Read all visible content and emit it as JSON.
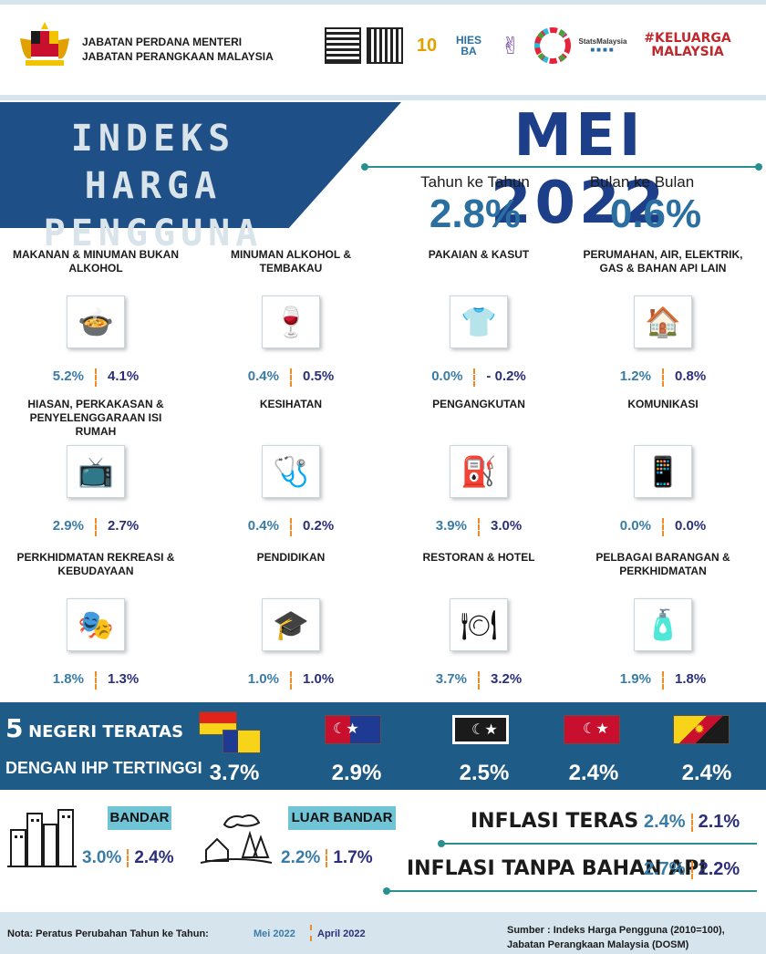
{
  "header": {
    "agency_line1": "JABATAN PERDANA MENTERI",
    "agency_line2": "JABATAN PERANGKAAN MALAYSIA",
    "logo_hies": "HIES BA",
    "logo_stats": "StatsMalaysia",
    "logo_keluarga": "#KELUARGA MALAYSIA"
  },
  "title": {
    "line1": "INDEKS HARGA",
    "line2": "PENGGUNA",
    "month": "MEI 2022",
    "yoy_label": "Tahun ke Tahun",
    "yoy_value": "2.8%",
    "mom_label": "Bulan ke Bulan",
    "mom_value": "0.6%"
  },
  "categories": [
    {
      "label": "MAKANAN & MINUMAN BUKAN ALKOHOL",
      "icon": "food-icon",
      "may": "5.2%",
      "apr": "4.1%"
    },
    {
      "label": "MINUMAN ALKOHOL & TEMBAKAU",
      "icon": "wine-bottle-icon",
      "may": "0.4%",
      "apr": "0.5%"
    },
    {
      "label": "PAKAIAN & KASUT",
      "icon": "clothing-icon",
      "may": "0.0%",
      "apr": "- 0.2%"
    },
    {
      "label": "PERUMAHAN, AIR, ELEKTRIK, GAS & BAHAN API LAIN",
      "icon": "house-icon",
      "may": "1.2%",
      "apr": "0.8%"
    },
    {
      "label": "HIASAN, PERKAKASAN & PENYELENGGARAAN ISI RUMAH",
      "icon": "furniture-icon",
      "may": "2.9%",
      "apr": "2.7%"
    },
    {
      "label": "KESIHATAN",
      "icon": "stethoscope-icon",
      "may": "0.4%",
      "apr": "0.2%"
    },
    {
      "label": "PENGANGKUTAN",
      "icon": "transport-icon",
      "may": "3.9%",
      "apr": "3.0%"
    },
    {
      "label": "KOMUNIKASI",
      "icon": "phone-icon",
      "may": "0.0%",
      "apr": "0.0%"
    },
    {
      "label": "PERKHIDMATAN REKREASI & KEBUDAYAAN",
      "icon": "theatre-masks-icon",
      "may": "1.8%",
      "apr": "1.3%"
    },
    {
      "label": "PENDIDIKAN",
      "icon": "graduation-cap-icon",
      "may": "1.0%",
      "apr": "1.0%"
    },
    {
      "label": "RESTORAN & HOTEL",
      "icon": "restaurant-icon",
      "may": "3.7%",
      "apr": "3.2%"
    },
    {
      "label": "PELBAGAI BARANGAN & PERKHIDMATAN",
      "icon": "misc-goods-icon",
      "may": "1.9%",
      "apr": "1.8%"
    }
  ],
  "states": {
    "title_num": "5",
    "title_rest": "NEGERI TERATAS",
    "title_line2": "DENGAN IHP TERTINGGI",
    "items": [
      {
        "flag": "selangor-kl-flag",
        "value": "3.7%"
      },
      {
        "flag": "johor-flag",
        "value": "2.9%"
      },
      {
        "flag": "kelantan-flag",
        "value": "2.5%"
      },
      {
        "flag": "terengganu-flag",
        "value": "2.4%"
      },
      {
        "flag": "sarawak-flag",
        "value": "2.4%"
      }
    ]
  },
  "urban": {
    "label": "BANDAR",
    "may": "3.0%",
    "apr": "2.4%"
  },
  "rural": {
    "label": "LUAR BANDAR",
    "may": "2.2%",
    "apr": "1.7%"
  },
  "core": {
    "label": "INFLASI TERAS",
    "may": "2.4%",
    "apr": "2.1%"
  },
  "no_fuel": {
    "label": "INFLASI TANPA BAHAN API",
    "may": "2.7%",
    "apr": "2.2%"
  },
  "footer": {
    "note": "Nota: Peratus Perubahan Tahun ke Tahun:",
    "legend_may": "Mei 2022",
    "legend_apr": "April 2022",
    "source_line1": "Sumber : Indeks Harga Pengguna (2010=100),",
    "source_line2": "Jabatan Perangkaan Malaysia (DOSM)"
  },
  "colors": {
    "navy": "#1e4f86",
    "teal": "#2a8f8f",
    "may_value": "#3a7ca8",
    "apr_value": "#2b2f7a",
    "separator": "#f08a24",
    "tag": "#6fc4d6"
  }
}
